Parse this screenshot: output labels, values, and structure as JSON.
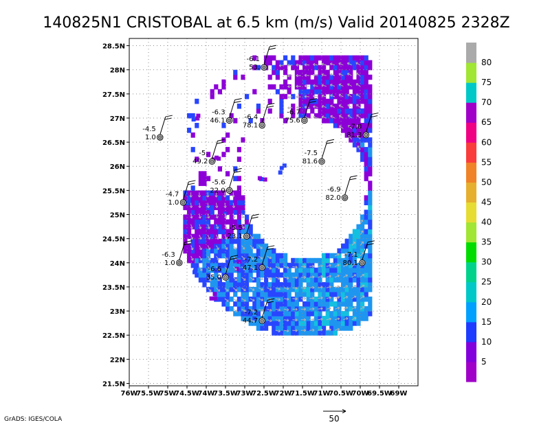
{
  "title": "140825N1 CRISTOBAL at 6.5 km (m/s) Valid 20140825 2328Z",
  "footer_left": "GrADS: IGES/COLA",
  "reference_vector": {
    "label": "50",
    "speed": 50
  },
  "map": {
    "lon_min": -76.0,
    "lon_max": -68.5,
    "lat_min": 21.45,
    "lat_max": 28.65,
    "x_ticks": [
      "76W",
      "75.5W",
      "75W",
      "74.5W",
      "74W",
      "73.5W",
      "73W",
      "72.5W",
      "72W",
      "71.5W",
      "71W",
      "70.5W",
      "70W",
      "69.5W",
      "69W"
    ],
    "x_tick_values": [
      -76,
      -75.5,
      -75,
      -74.5,
      -74,
      -73.5,
      -73,
      -72.5,
      -72,
      -71.5,
      -71,
      -70.5,
      -70,
      -69.5,
      -69
    ],
    "y_ticks": [
      "21.5N",
      "22N",
      "22.5N",
      "23N",
      "23.5N",
      "24N",
      "24.5N",
      "25N",
      "25.5N",
      "26N",
      "26.5N",
      "27N",
      "27.5N",
      "28N",
      "28.5N"
    ],
    "y_tick_values": [
      21.5,
      22,
      22.5,
      23,
      23.5,
      24,
      24.5,
      25,
      25.5,
      26,
      26.5,
      27,
      27.5,
      28,
      28.5
    ],
    "grid": true
  },
  "colorbar": {
    "labels": [
      "5",
      "10",
      "15",
      "20",
      "25",
      "30",
      "35",
      "40",
      "45",
      "50",
      "55",
      "60",
      "65",
      "70",
      "75",
      "80"
    ],
    "colors": [
      "#a000c8",
      "#8200dc",
      "#1e3cff",
      "#00a0ff",
      "#00c8c8",
      "#00d28c",
      "#00dc00",
      "#a0e632",
      "#e6dc32",
      "#e6af2d",
      "#f08228",
      "#fa3c3c",
      "#f00082",
      "#a000c8",
      "#00c8c8",
      "#a0e632",
      "#aaaaaa"
    ]
  },
  "shading_colors": {
    "weak": "#8c00d7",
    "moderate": "#2846ff",
    "strong": "#1e96f0",
    "stronger": "#14c0e0",
    "vector": "#b4b4b4"
  },
  "observations": [
    {
      "lon": -75.2,
      "lat": 26.6,
      "value": "-4.5",
      "count": "1.0"
    },
    {
      "lon": -74.6,
      "lat": 25.25,
      "value": "-4.7",
      "count": "1.0"
    },
    {
      "lon": -74.7,
      "lat": 24.0,
      "value": "-6.3",
      "count": "1.0"
    },
    {
      "lon": -73.85,
      "lat": 26.1,
      "value": "-5.",
      "count": "49.2"
    },
    {
      "lon": -73.4,
      "lat": 26.95,
      "value": "-6.3",
      "count": "46.1"
    },
    {
      "lon": -73.4,
      "lat": 25.5,
      "value": "-5.6",
      "count": "22.0"
    },
    {
      "lon": -73.5,
      "lat": 23.7,
      "value": "-6.6",
      "count": "35.0"
    },
    {
      "lon": -72.95,
      "lat": 24.55,
      "value": "-5.5",
      "count": "23.1"
    },
    {
      "lon": -72.5,
      "lat": 28.05,
      "value": "-6.1",
      "count": "53."
    },
    {
      "lon": -72.55,
      "lat": 26.85,
      "value": "-6.4",
      "count": "78.1"
    },
    {
      "lon": -71.45,
      "lat": 26.95,
      "value": "-6.7",
      "count": "75.6"
    },
    {
      "lon": -72.55,
      "lat": 23.9,
      "value": "-7.2",
      "count": "47.1"
    },
    {
      "lon": -72.55,
      "lat": 22.8,
      "value": "-7.2",
      "count": "44.7"
    },
    {
      "lon": -71.0,
      "lat": 26.1,
      "value": "-7.5",
      "count": "81.6"
    },
    {
      "lon": -70.4,
      "lat": 25.35,
      "value": "-6.9",
      "count": "82.0"
    },
    {
      "lon": -69.85,
      "lat": 26.65,
      "value": "-7.0",
      "count": "81.3"
    },
    {
      "lon": -69.95,
      "lat": 24.0,
      "value": "-7.1",
      "count": "80.1"
    }
  ]
}
